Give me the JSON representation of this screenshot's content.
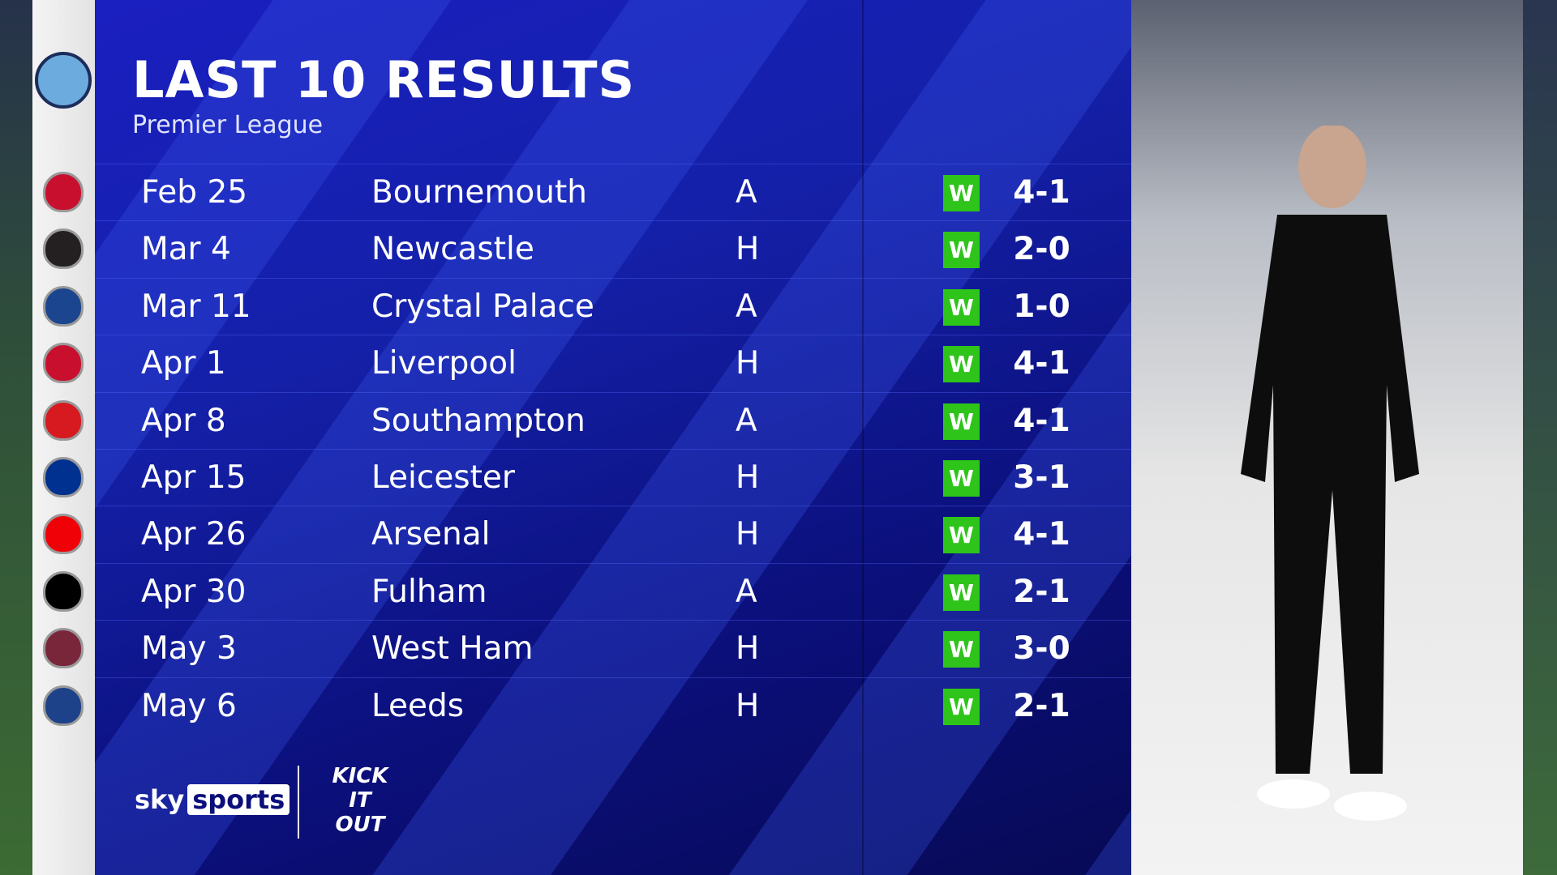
{
  "header": {
    "title": "LAST 10 RESULTS",
    "subtitle": "Premier League"
  },
  "colors": {
    "win": "#2ec41a",
    "panel": "#1420a8"
  },
  "results": [
    {
      "date": "Feb 25",
      "opponent": "Bournemouth",
      "venue": "A",
      "result": "W",
      "score": "4-1",
      "crest": "#c8102e"
    },
    {
      "date": "Mar 4",
      "opponent": "Newcastle",
      "venue": "H",
      "result": "W",
      "score": "2-0",
      "crest": "#241f20"
    },
    {
      "date": "Mar 11",
      "opponent": "Crystal Palace",
      "venue": "A",
      "result": "W",
      "score": "1-0",
      "crest": "#1b458f"
    },
    {
      "date": "Apr 1",
      "opponent": "Liverpool",
      "venue": "H",
      "result": "W",
      "score": "4-1",
      "crest": "#c8102e"
    },
    {
      "date": "Apr 8",
      "opponent": "Southampton",
      "venue": "A",
      "result": "W",
      "score": "4-1",
      "crest": "#d71920"
    },
    {
      "date": "Apr 15",
      "opponent": "Leicester",
      "venue": "H",
      "result": "W",
      "score": "3-1",
      "crest": "#003090"
    },
    {
      "date": "Apr 26",
      "opponent": "Arsenal",
      "venue": "H",
      "result": "W",
      "score": "4-1",
      "crest": "#ef0107"
    },
    {
      "date": "Apr 30",
      "opponent": "Fulham",
      "venue": "A",
      "result": "W",
      "score": "2-1",
      "crest": "#000000"
    },
    {
      "date": "May 3",
      "opponent": "West Ham",
      "venue": "H",
      "result": "W",
      "score": "3-0",
      "crest": "#7a263a"
    },
    {
      "date": "May 6",
      "opponent": "Leeds",
      "venue": "H",
      "result": "W",
      "score": "2-1",
      "crest": "#1d428a"
    }
  ],
  "footer": {
    "brand_sky": "sky",
    "brand_sports": "sports",
    "kick_it_out": "KICK IT OUT"
  }
}
